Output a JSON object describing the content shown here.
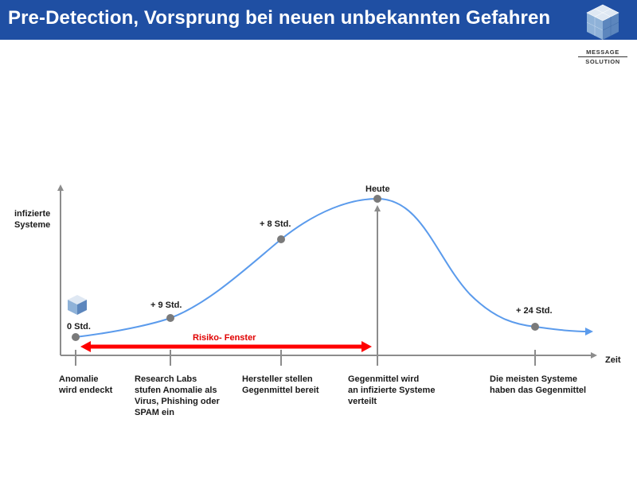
{
  "header": {
    "title": "Pre-Detection, Vorsprung bei neuen unbekannten Gefahren",
    "background_color": "#1f4fa3"
  },
  "logo": {
    "line1": "Message",
    "line2": "Solution",
    "icon": "cube-logo-icon"
  },
  "diagram": {
    "y_axis_label": "infizierte Systeme",
    "x_axis_label": "Zeit",
    "curve_color": "#5b9bec",
    "risk_color": "#ff0000",
    "risk_window_label": "Risiko- Fenster",
    "points": [
      {
        "label": "0 Std."
      },
      {
        "label": "+ 9 Std."
      },
      {
        "label": "+ 8 Std."
      },
      {
        "label": "Heute"
      },
      {
        "label": "+ 24 Std."
      }
    ],
    "milestones": [
      {
        "lines": [
          "Anomalie",
          "wird endeckt"
        ]
      },
      {
        "lines": [
          "Research Labs",
          "stufen Anomalie als",
          "Virus, Phishing oder",
          "SPAM ein"
        ]
      },
      {
        "lines": [
          "Hersteller stellen",
          "Gegenmittel bereit"
        ]
      },
      {
        "lines": [
          "Gegenmittel wird",
          "an infizierte Systeme",
          "verteilt"
        ]
      },
      {
        "lines": [
          "Die meisten Systeme",
          "haben das Gegenmittel"
        ]
      }
    ]
  }
}
